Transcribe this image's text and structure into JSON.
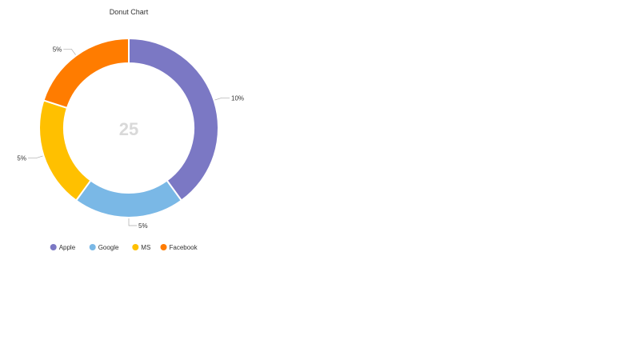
{
  "chart_data": {
    "type": "pie",
    "variant": "donut",
    "title": "Donut Chart",
    "center_text": "25",
    "legend_position": "bottom",
    "slices": [
      {
        "name": "Apple",
        "value": 10,
        "label": "10%",
        "color": "#7b78c4"
      },
      {
        "name": "Google",
        "value": 5,
        "label": "5%",
        "color": "#7ab8e6"
      },
      {
        "name": "MS",
        "value": 5,
        "label": "5%",
        "color": "#ffc000"
      },
      {
        "name": "Facebook",
        "value": 5,
        "label": "5%",
        "color": "#ff7c00"
      }
    ]
  }
}
